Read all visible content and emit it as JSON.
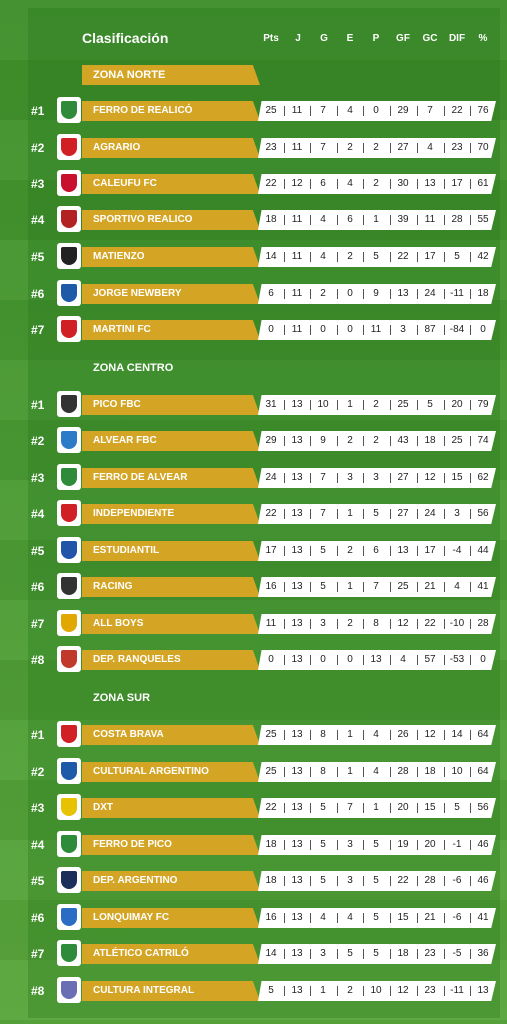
{
  "header": {
    "title": "Clasificación",
    "columns": [
      "Pts",
      "J",
      "G",
      "E",
      "P",
      "GF",
      "GC",
      "DIF",
      "%"
    ]
  },
  "zones": [
    {
      "name": "ZONA NORTE",
      "teams": [
        {
          "rank": "#1",
          "name": "FERRO DE REALICÓ",
          "crest_color": "#2e8b3a",
          "stats": [
            "25",
            "11",
            "7",
            "4",
            "0",
            "29",
            "7",
            "22",
            "76"
          ]
        },
        {
          "rank": "#2",
          "name": "AGRARIO",
          "crest_color": "#d11f26",
          "stats": [
            "23",
            "11",
            "7",
            "2",
            "2",
            "27",
            "4",
            "23",
            "70"
          ]
        },
        {
          "rank": "#3",
          "name": "CALEUFU FC",
          "crest_color": "#c8102e",
          "stats": [
            "22",
            "12",
            "6",
            "4",
            "2",
            "30",
            "13",
            "17",
            "61"
          ]
        },
        {
          "rank": "#4",
          "name": "SPORTIVO REALICO",
          "crest_color": "#b22222",
          "stats": [
            "18",
            "11",
            "4",
            "6",
            "1",
            "39",
            "11",
            "28",
            "55"
          ]
        },
        {
          "rank": "#5",
          "name": "MATIENZO",
          "crest_color": "#222222",
          "stats": [
            "14",
            "11",
            "4",
            "2",
            "5",
            "22",
            "17",
            "5",
            "42"
          ]
        },
        {
          "rank": "#6",
          "name": "JORGE NEWBERY",
          "crest_color": "#1e5aa8",
          "stats": [
            "6",
            "11",
            "2",
            "0",
            "9",
            "13",
            "24",
            "-11",
            "18"
          ]
        },
        {
          "rank": "#7",
          "name": "MARTINI FC",
          "crest_color": "#d11f26",
          "stats": [
            "0",
            "11",
            "0",
            "0",
            "11",
            "3",
            "87",
            "-84",
            "0"
          ]
        }
      ]
    },
    {
      "name": "ZONA CENTRO",
      "teams": [
        {
          "rank": "#1",
          "name": "PICO FBC",
          "crest_color": "#333333",
          "stats": [
            "31",
            "13",
            "10",
            "1",
            "2",
            "25",
            "5",
            "20",
            "79"
          ]
        },
        {
          "rank": "#2",
          "name": "ALVEAR FBC",
          "crest_color": "#2b7bc9",
          "stats": [
            "29",
            "13",
            "9",
            "2",
            "2",
            "43",
            "18",
            "25",
            "74"
          ]
        },
        {
          "rank": "#3",
          "name": "FERRO DE ALVEAR",
          "crest_color": "#2e8b3a",
          "stats": [
            "24",
            "13",
            "7",
            "3",
            "3",
            "27",
            "12",
            "15",
            "62"
          ]
        },
        {
          "rank": "#4",
          "name": "INDEPENDIENTE",
          "crest_color": "#d11f26",
          "stats": [
            "22",
            "13",
            "7",
            "1",
            "5",
            "27",
            "24",
            "3",
            "56"
          ]
        },
        {
          "rank": "#5",
          "name": "ESTUDIANTIL",
          "crest_color": "#2255aa",
          "stats": [
            "17",
            "13",
            "5",
            "2",
            "6",
            "13",
            "17",
            "-4",
            "44"
          ]
        },
        {
          "rank": "#6",
          "name": "RACING",
          "crest_color": "#333333",
          "stats": [
            "16",
            "13",
            "5",
            "1",
            "7",
            "25",
            "21",
            "4",
            "41"
          ]
        },
        {
          "rank": "#7",
          "name": "ALL BOYS",
          "crest_color": "#e0a800",
          "stats": [
            "11",
            "13",
            "3",
            "2",
            "8",
            "12",
            "22",
            "-10",
            "28"
          ]
        },
        {
          "rank": "#8",
          "name": "DEP. RANQUELES",
          "crest_color": "#c0392b",
          "stats": [
            "0",
            "13",
            "0",
            "0",
            "13",
            "4",
            "57",
            "-53",
            "0"
          ]
        }
      ]
    },
    {
      "name": "ZONA SUR",
      "teams": [
        {
          "rank": "#1",
          "name": "COSTA BRAVA",
          "crest_color": "#d11f26",
          "stats": [
            "25",
            "13",
            "8",
            "1",
            "4",
            "26",
            "12",
            "14",
            "64"
          ]
        },
        {
          "rank": "#2",
          "name": "CULTURAL ARGENTINO",
          "crest_color": "#1e5aa8",
          "stats": [
            "25",
            "13",
            "8",
            "1",
            "4",
            "28",
            "18",
            "10",
            "64"
          ]
        },
        {
          "rank": "#3",
          "name": "DXT",
          "crest_color": "#e6c200",
          "stats": [
            "22",
            "13",
            "5",
            "7",
            "1",
            "20",
            "15",
            "5",
            "56"
          ]
        },
        {
          "rank": "#4",
          "name": "FERRO DE PICO",
          "crest_color": "#2e8b3a",
          "stats": [
            "18",
            "13",
            "5",
            "3",
            "5",
            "19",
            "20",
            "-1",
            "46"
          ]
        },
        {
          "rank": "#5",
          "name": "DEP. ARGENTINO",
          "crest_color": "#1c2f5a",
          "stats": [
            "18",
            "13",
            "5",
            "3",
            "5",
            "22",
            "28",
            "-6",
            "46"
          ]
        },
        {
          "rank": "#6",
          "name": "LONQUIMAY FC",
          "crest_color": "#2b6cc4",
          "stats": [
            "16",
            "13",
            "4",
            "4",
            "5",
            "15",
            "21",
            "-6",
            "41"
          ]
        },
        {
          "rank": "#7",
          "name": "ATLÉTICO CATRILÓ",
          "crest_color": "#2e8b3a",
          "stats": [
            "14",
            "13",
            "3",
            "5",
            "5",
            "18",
            "23",
            "-5",
            "36"
          ]
        },
        {
          "rank": "#8",
          "name": "CULTURA INTEGRAL",
          "crest_color": "#6a6fb5",
          "stats": [
            "5",
            "13",
            "1",
            "2",
            "10",
            "12",
            "23",
            "-11",
            "13"
          ]
        }
      ]
    }
  ]
}
